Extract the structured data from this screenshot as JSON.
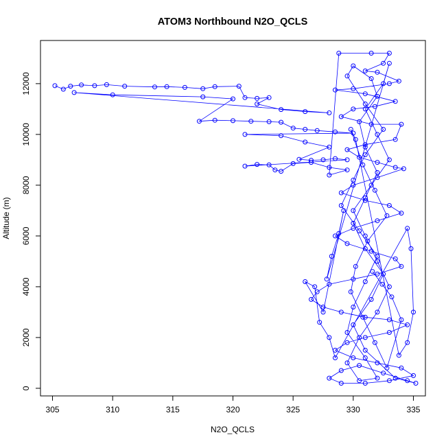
{
  "chart_data": {
    "type": "scatter",
    "title": "ATOM3 Northbound N2O_QCLS",
    "xlabel": "N2O_QCLS",
    "ylabel": "Altitude (m)",
    "xlim": [
      304,
      336
    ],
    "ylim": [
      -300,
      13700
    ],
    "xticks": [
      "305",
      "310",
      "315",
      "320",
      "325",
      "330",
      "335"
    ],
    "yticks": [
      "0",
      "2000",
      "4000",
      "6000",
      "8000",
      "10000",
      "12000"
    ],
    "grid": false,
    "legend": "none",
    "series": [
      {
        "color": "#0000ff",
        "marker": "open-circle",
        "line": true,
        "points": [
          [
            305.2,
            11920
          ],
          [
            305.9,
            11780
          ],
          [
            306.5,
            11900
          ],
          [
            307.4,
            11950
          ],
          [
            308.5,
            11920
          ],
          [
            309.5,
            11960
          ],
          [
            311.0,
            11900
          ],
          [
            313.5,
            11870
          ],
          [
            314.5,
            11880
          ],
          [
            316.0,
            11850
          ],
          [
            317.5,
            11800
          ],
          [
            318.5,
            11880
          ],
          [
            320.5,
            11900
          ],
          [
            321.0,
            11450
          ],
          [
            322.0,
            11420
          ],
          [
            323.0,
            11450
          ],
          [
            322.0,
            11200
          ],
          [
            324.0,
            10980
          ],
          [
            326.0,
            10900
          ],
          [
            328.0,
            10850
          ],
          [
            306.8,
            11650
          ],
          [
            310.0,
            11560
          ],
          [
            317.5,
            11480
          ],
          [
            320.0,
            11400
          ],
          [
            317.2,
            10520
          ],
          [
            318.5,
            10560
          ],
          [
            320.0,
            10540
          ],
          [
            321.5,
            10520
          ],
          [
            323.0,
            10500
          ],
          [
            324.0,
            10480
          ],
          [
            325.0,
            10250
          ],
          [
            326.0,
            10200
          ],
          [
            327.0,
            10150
          ],
          [
            328.5,
            10100
          ],
          [
            330.0,
            10050
          ],
          [
            321.0,
            10000
          ],
          [
            324.0,
            9950
          ],
          [
            326.0,
            9700
          ],
          [
            328.0,
            9500
          ],
          [
            325.5,
            9020
          ],
          [
            326.5,
            8980
          ],
          [
            327.5,
            9000
          ],
          [
            328.5,
            9050
          ],
          [
            329.5,
            9000
          ],
          [
            321.0,
            8750
          ],
          [
            322.0,
            8820
          ],
          [
            323.0,
            8800
          ],
          [
            323.5,
            8600
          ],
          [
            324.0,
            8550
          ],
          [
            325.0,
            8850
          ],
          [
            326.5,
            8900
          ],
          [
            328.0,
            8700
          ],
          [
            329.5,
            8600
          ],
          [
            328.0,
            8400
          ],
          [
            328.8,
            13200
          ],
          [
            331.5,
            13200
          ],
          [
            333.0,
            13200
          ],
          [
            332.5,
            12800
          ],
          [
            331.0,
            12500
          ],
          [
            332.0,
            12450
          ],
          [
            333.8,
            12100
          ],
          [
            333.0,
            12000
          ],
          [
            330.0,
            11800
          ],
          [
            328.5,
            11750
          ],
          [
            331.0,
            11600
          ],
          [
            333.5,
            11300
          ],
          [
            331.8,
            11100
          ],
          [
            330.0,
            11000
          ],
          [
            329.0,
            10700
          ],
          [
            331.5,
            10400
          ],
          [
            334.0,
            10400
          ],
          [
            333.5,
            9800
          ],
          [
            331.0,
            9600
          ],
          [
            329.5,
            9400
          ],
          [
            330.5,
            9100
          ],
          [
            332.0,
            8900
          ],
          [
            333.5,
            8700
          ],
          [
            334.2,
            8650
          ],
          [
            332.0,
            8300
          ],
          [
            330.0,
            8000
          ],
          [
            329.0,
            7700
          ],
          [
            331.0,
            7400
          ],
          [
            333.0,
            7200
          ],
          [
            334.0,
            6900
          ],
          [
            332.0,
            6600
          ],
          [
            330.0,
            6300
          ],
          [
            328.5,
            6000
          ],
          [
            329.5,
            5700
          ],
          [
            331.5,
            5400
          ],
          [
            333.5,
            5100
          ],
          [
            334.0,
            4800
          ],
          [
            332.0,
            4500
          ],
          [
            330.0,
            4300
          ],
          [
            328.0,
            4100
          ],
          [
            327.0,
            3800
          ],
          [
            326.5,
            3500
          ],
          [
            327.5,
            3200
          ],
          [
            329.0,
            3000
          ],
          [
            331.0,
            2800
          ],
          [
            333.0,
            2700
          ],
          [
            334.5,
            2500
          ],
          [
            333.0,
            2200
          ],
          [
            331.0,
            2000
          ],
          [
            329.5,
            1800
          ],
          [
            328.5,
            1500
          ],
          [
            330.0,
            1200
          ],
          [
            332.0,
            1000
          ],
          [
            334.0,
            800
          ],
          [
            335.0,
            500
          ],
          [
            333.0,
            300
          ],
          [
            331.0,
            200
          ],
          [
            329.0,
            200
          ],
          [
            328.0,
            400
          ],
          [
            329.0,
            700
          ],
          [
            330.5,
            900
          ],
          [
            332.5,
            600
          ],
          [
            334.5,
            300
          ],
          [
            335.2,
            200
          ],
          [
            333.5,
            400
          ],
          [
            331.0,
            1500
          ],
          [
            330.0,
            2500
          ],
          [
            331.5,
            3500
          ],
          [
            332.5,
            4500
          ],
          [
            331.0,
            5500
          ],
          [
            330.0,
            6500
          ],
          [
            331.0,
            7500
          ],
          [
            332.0,
            8500
          ],
          [
            331.0,
            9500
          ],
          [
            330.5,
            10500
          ],
          [
            332.0,
            11500
          ],
          [
            331.5,
            12200
          ],
          [
            330.0,
            12700
          ],
          [
            329.5,
            12300
          ],
          [
            331.0,
            11200
          ],
          [
            332.5,
            10200
          ],
          [
            331.0,
            9200
          ],
          [
            330.0,
            8200
          ],
          [
            329.0,
            7200
          ],
          [
            330.5,
            6200
          ],
          [
            332.0,
            5200
          ],
          [
            331.0,
            4200
          ],
          [
            330.0,
            3200
          ],
          [
            329.5,
            2200
          ],
          [
            331.0,
            1200
          ],
          [
            332.0,
            400
          ],
          [
            330.5,
            300
          ],
          [
            329.5,
            1000
          ],
          [
            330.5,
            2000
          ],
          [
            332.0,
            3000
          ],
          [
            333.0,
            4000
          ],
          [
            332.0,
            5000
          ],
          [
            331.0,
            6000
          ],
          [
            330.0,
            7000
          ],
          [
            331.5,
            8000
          ],
          [
            333.0,
            9000
          ],
          [
            332.0,
            10000
          ],
          [
            331.0,
            11000
          ],
          [
            332.5,
            12000
          ],
          [
            333.0,
            12800
          ],
          [
            327.8,
            4300
          ],
          [
            328.2,
            5200
          ],
          [
            328.8,
            6100
          ],
          [
            329.2,
            7000
          ],
          [
            327.5,
            3000
          ],
          [
            326.0,
            4200
          ],
          [
            326.8,
            4000
          ],
          [
            327.2,
            2600
          ],
          [
            328.0,
            2000
          ],
          [
            328.5,
            1200
          ],
          [
            334.5,
            6300
          ],
          [
            334.8,
            5500
          ],
          [
            335.0,
            3000
          ],
          [
            334.5,
            1800
          ],
          [
            333.8,
            1300
          ],
          [
            330.2,
            9800
          ],
          [
            329.8,
            10200
          ],
          [
            330.8,
            8800
          ],
          [
            331.8,
            7800
          ],
          [
            332.8,
            6800
          ],
          [
            331.2,
            5800
          ],
          [
            330.2,
            4800
          ],
          [
            329.8,
            3800
          ],
          [
            330.8,
            2800
          ],
          [
            331.8,
            1800
          ],
          [
            332.8,
            800
          ],
          [
            334.0,
            2700
          ],
          [
            333.2,
            3600
          ],
          [
            332.4,
            4100
          ],
          [
            331.6,
            4600
          ]
        ]
      }
    ]
  }
}
